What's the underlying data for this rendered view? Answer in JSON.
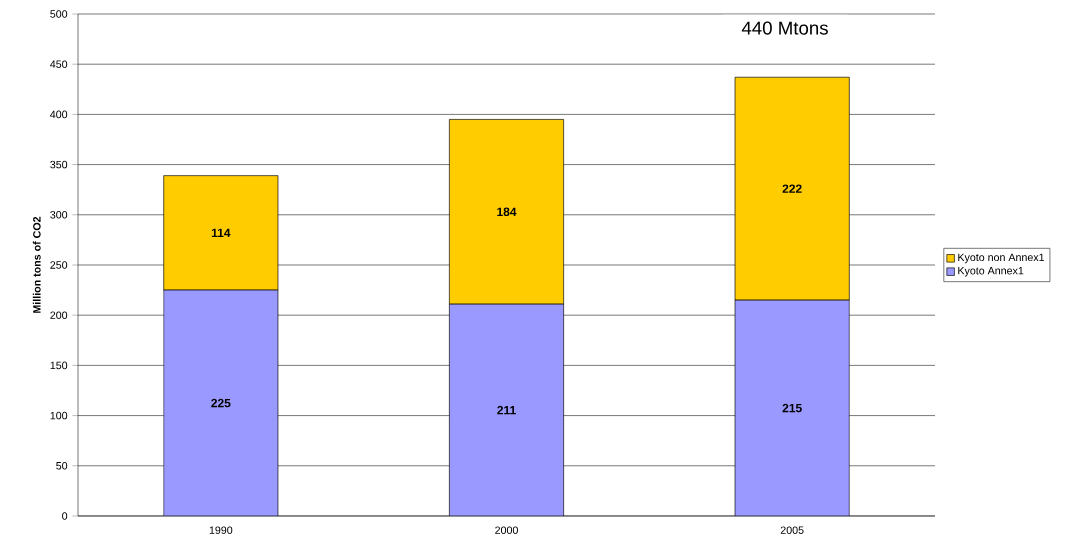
{
  "chart_data": {
    "type": "bar",
    "stacked": true,
    "ylabel": "Million tons of CO2",
    "categories": [
      "1990",
      "2000",
      "2005"
    ],
    "series": [
      {
        "name": "Kyoto Annex1",
        "color": "#9999ff",
        "values": [
          225,
          211,
          215
        ]
      },
      {
        "name": "Kyoto non Annex1",
        "color": "#ffcc00",
        "values": [
          114,
          184,
          222
        ]
      }
    ],
    "ylim": [
      0,
      500
    ],
    "yticks": [
      0,
      50,
      100,
      150,
      200,
      250,
      300,
      350,
      400,
      450,
      500
    ],
    "grid": "y",
    "legend": "right",
    "data_labels": true,
    "annotations": [
      "440 Mtons"
    ]
  }
}
